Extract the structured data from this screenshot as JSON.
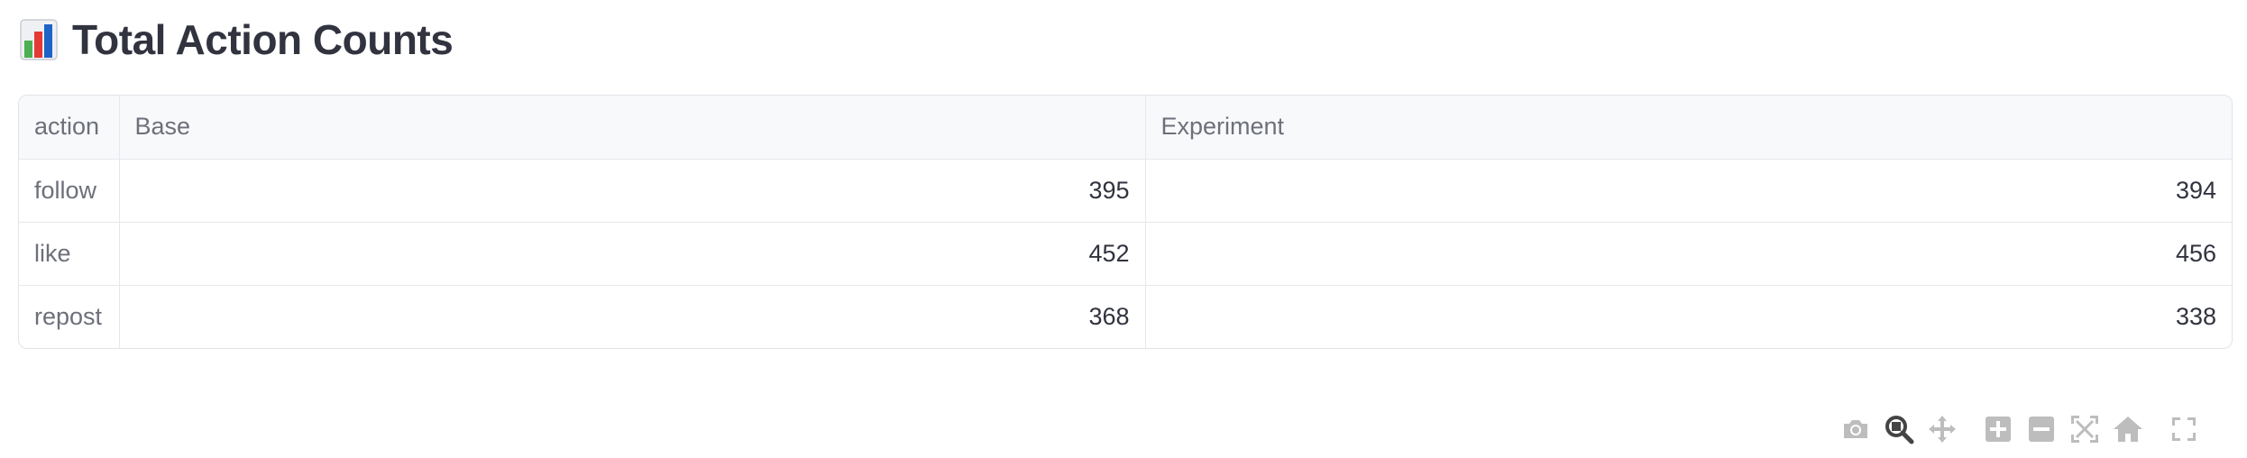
{
  "header": {
    "title": "Total Action Counts",
    "emoji_icon": "bar-chart-emoji-icon"
  },
  "table": {
    "columns": [
      "action",
      "Base",
      "Experiment"
    ],
    "rows": [
      {
        "action": "follow",
        "base": "395",
        "experiment": "394"
      },
      {
        "action": "like",
        "base": "452",
        "experiment": "456"
      },
      {
        "action": "repost",
        "base": "368",
        "experiment": "338"
      }
    ]
  },
  "modebar": {
    "buttons": [
      {
        "name": "camera-icon",
        "label": "Download plot as a png",
        "active": false
      },
      {
        "name": "zoom-icon",
        "label": "Zoom",
        "active": true
      },
      {
        "name": "pan-icon",
        "label": "Pan",
        "active": false
      },
      {
        "name": "zoom-in-icon",
        "label": "Zoom in",
        "active": false
      },
      {
        "name": "zoom-out-icon",
        "label": "Zoom out",
        "active": false
      },
      {
        "name": "autoscale-icon",
        "label": "Autoscale",
        "active": false
      },
      {
        "name": "reset-axes-icon",
        "label": "Reset axes",
        "active": false
      },
      {
        "name": "fullscreen-icon",
        "label": "Fullscreen",
        "active": false
      }
    ]
  },
  "colors": {
    "text": "#31333f",
    "muted": "#6d707a",
    "header_bg": "#f8f9fb",
    "border": "#e1e3e8",
    "icon_inactive": "#bdbdbd",
    "icon_active": "#444444"
  }
}
